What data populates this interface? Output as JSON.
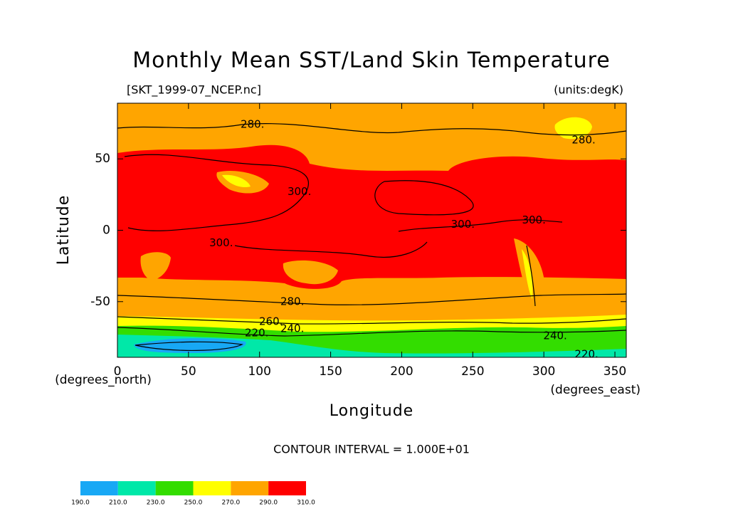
{
  "chart_data": {
    "type": "contour",
    "title": "Monthly Mean SST/Land Skin Temperature",
    "file_label": "[SKT_1999-07_NCEP.nc]",
    "units_label": "(units:degK)",
    "x_label": "Longitude",
    "y_label": "Latitude",
    "x_units": "(degrees_east)",
    "y_units": "(degrees_north)",
    "xlim": [
      0,
      358
    ],
    "ylim": [
      -89,
      89
    ],
    "xticks": [
      0,
      50,
      100,
      150,
      200,
      250,
      300,
      350
    ],
    "yticks": [
      -50,
      0,
      50
    ],
    "contour_interval": "CONTOUR INTERVAL = 1.000E+01",
    "levels": [
      {
        "value": 190,
        "label": "190.0"
      },
      {
        "value": 210,
        "label": "210.0"
      },
      {
        "value": 230,
        "label": "230.0"
      },
      {
        "value": 250,
        "label": "250.0"
      },
      {
        "value": 270,
        "label": "270.0"
      },
      {
        "value": 290,
        "label": "290.0"
      },
      {
        "value": 310,
        "label": "310.0"
      }
    ],
    "level_colors": [
      "#18a8f5",
      "#00e8a8",
      "#33dd00",
      "#ffff00",
      "#ffa500",
      "#ff0000"
    ],
    "contour_labels": [
      {
        "value": 280,
        "label": "280.",
        "lon": 95,
        "lat": 74
      },
      {
        "value": 280,
        "label": "280.",
        "lon": 328,
        "lat": 63
      },
      {
        "value": 300,
        "label": "300.",
        "lon": 128,
        "lat": 27
      },
      {
        "value": 300,
        "label": "300.",
        "lon": 73,
        "lat": -9
      },
      {
        "value": 300,
        "label": "300.",
        "lon": 243,
        "lat": 4
      },
      {
        "value": 300,
        "label": "300.",
        "lon": 293,
        "lat": 7
      },
      {
        "value": 280,
        "label": "280.",
        "lon": 123,
        "lat": -50
      },
      {
        "value": 260,
        "label": "260.",
        "lon": 108,
        "lat": -64
      },
      {
        "value": 240,
        "label": "240.",
        "lon": 123,
        "lat": -69
      },
      {
        "value": 220,
        "label": "220.",
        "lon": 98,
        "lat": -72
      },
      {
        "value": 240,
        "label": "240.",
        "lon": 308,
        "lat": -74
      },
      {
        "value": 220,
        "label": "220.",
        "lon": 330,
        "lat": -87
      }
    ]
  }
}
